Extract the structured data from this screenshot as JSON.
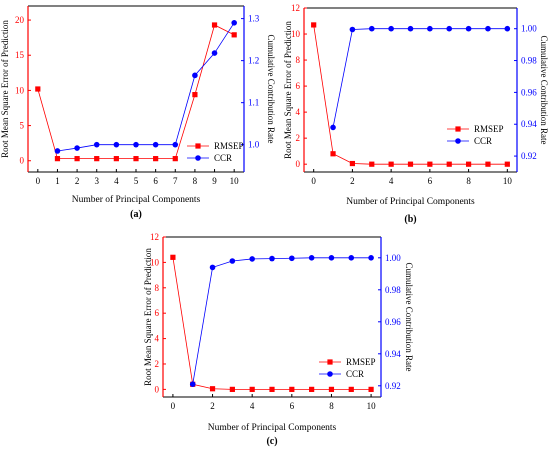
{
  "chart_data": [
    {
      "type": "line",
      "caption": "(a)",
      "x": [
        0,
        1,
        2,
        3,
        4,
        5,
        6,
        7,
        8,
        9,
        10
      ],
      "xlabel": "Number of Principal Components",
      "xticks": [
        "0",
        "1",
        "2",
        "3",
        "4",
        "5",
        "6",
        "7",
        "8",
        "9",
        "10"
      ],
      "ylabel_left": "Root Mean Square Error of Prediction",
      "ylabel_right": "Cumulative Contribution Rate",
      "y_left_lim": [
        -1.6,
        22
      ],
      "y_right_lim": [
        0.935,
        1.33
      ],
      "y_left_ticks": [
        "0",
        "5",
        "10",
        "15",
        "20"
      ],
      "y_right_ticks": [
        "1.0",
        "1.1",
        "1.2",
        "1.3"
      ],
      "legend_position": "center-right",
      "series": [
        {
          "name": "RMSEP",
          "axis": "left",
          "color": "#ff0000",
          "marker": "square",
          "values": [
            10.2,
            0.3,
            0.3,
            0.3,
            0.3,
            0.3,
            0.3,
            0.3,
            9.4,
            19.3,
            17.9
          ]
        },
        {
          "name": "CCR",
          "axis": "right",
          "color": "#0000ff",
          "marker": "circle",
          "values": [
            null,
            0.985,
            0.992,
            1.0,
            1.0,
            1.0,
            1.0,
            1.0,
            1.165,
            1.218,
            1.29
          ]
        }
      ]
    },
    {
      "type": "line",
      "caption": "(b)",
      "x": [
        0,
        1,
        2,
        3,
        4,
        5,
        6,
        7,
        8,
        9,
        10
      ],
      "xlabel": "Number of Principal Components",
      "xticks": [
        "0",
        "2",
        "4",
        "6",
        "8",
        "10"
      ],
      "ylabel_left": "Root Mean Square Error of Prediction",
      "ylabel_right": "Cumulative Contribution Rate",
      "y_left_lim": [
        -0.6,
        12
      ],
      "y_right_lim": [
        0.91,
        1.013
      ],
      "y_left_ticks": [
        "0",
        "2",
        "4",
        "6",
        "8",
        "10",
        "12"
      ],
      "y_right_ticks": [
        "0.92",
        "0.94",
        "0.96",
        "0.98",
        "1.00"
      ],
      "legend_position": "center-right",
      "series": [
        {
          "name": "RMSEP",
          "axis": "left",
          "color": "#ff0000",
          "marker": "square",
          "values": [
            10.7,
            0.8,
            0.05,
            0.0,
            0.0,
            0.0,
            0.0,
            0.0,
            0.0,
            0.0,
            0.0
          ]
        },
        {
          "name": "CCR",
          "axis": "right",
          "color": "#0000ff",
          "marker": "circle",
          "values": [
            null,
            0.938,
            0.9995,
            1.0,
            1.0,
            1.0,
            1.0,
            1.0,
            1.0,
            1.0,
            1.0
          ]
        }
      ]
    },
    {
      "type": "line",
      "caption": "(c)",
      "x": [
        0,
        1,
        2,
        3,
        4,
        5,
        6,
        7,
        8,
        9,
        10
      ],
      "xlabel": "Number of Principal Components",
      "xticks": [
        "0",
        "2",
        "4",
        "6",
        "8",
        "10"
      ],
      "ylabel_left": "Root Mean Square Error of Prediction",
      "ylabel_right": "Cumulative Contribution Rate",
      "y_left_lim": [
        -0.6,
        12
      ],
      "y_right_lim": [
        0.913,
        1.013
      ],
      "y_left_ticks": [
        "0",
        "2",
        "4",
        "6",
        "8",
        "10",
        "12"
      ],
      "y_right_ticks": [
        "0.92",
        "0.94",
        "0.96",
        "0.98",
        "1.00"
      ],
      "legend_position": "bottom-right",
      "series": [
        {
          "name": "RMSEP",
          "axis": "left",
          "color": "#ff0000",
          "marker": "square",
          "values": [
            10.4,
            0.4,
            0.05,
            0.0,
            0.0,
            0.0,
            0.0,
            0.0,
            0.0,
            0.0,
            0.0
          ]
        },
        {
          "name": "CCR",
          "axis": "right",
          "color": "#0000ff",
          "marker": "circle",
          "values": [
            null,
            0.921,
            0.994,
            0.998,
            0.9993,
            0.9995,
            0.9997,
            1.0,
            1.0,
            1.0,
            1.0
          ]
        }
      ]
    }
  ]
}
